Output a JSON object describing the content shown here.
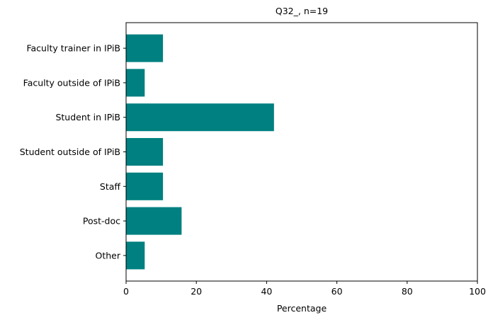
{
  "chart_data": {
    "type": "bar",
    "orientation": "horizontal",
    "title": "Q32_, n=19",
    "xlabel": "Percentage",
    "ylabel": "",
    "categories": [
      "Faculty trainer in IPiB",
      "Faculty outside of IPiB",
      "Student in IPiB",
      "Student outside of IPiB",
      "Staff",
      "Post-doc",
      "Other"
    ],
    "values": [
      10.5,
      5.3,
      42.1,
      10.5,
      10.5,
      15.8,
      5.3
    ],
    "xlim": [
      0,
      100
    ],
    "xticks": [
      0,
      20,
      40,
      60,
      80,
      100
    ],
    "grid": false,
    "bar_color": "#008080"
  }
}
